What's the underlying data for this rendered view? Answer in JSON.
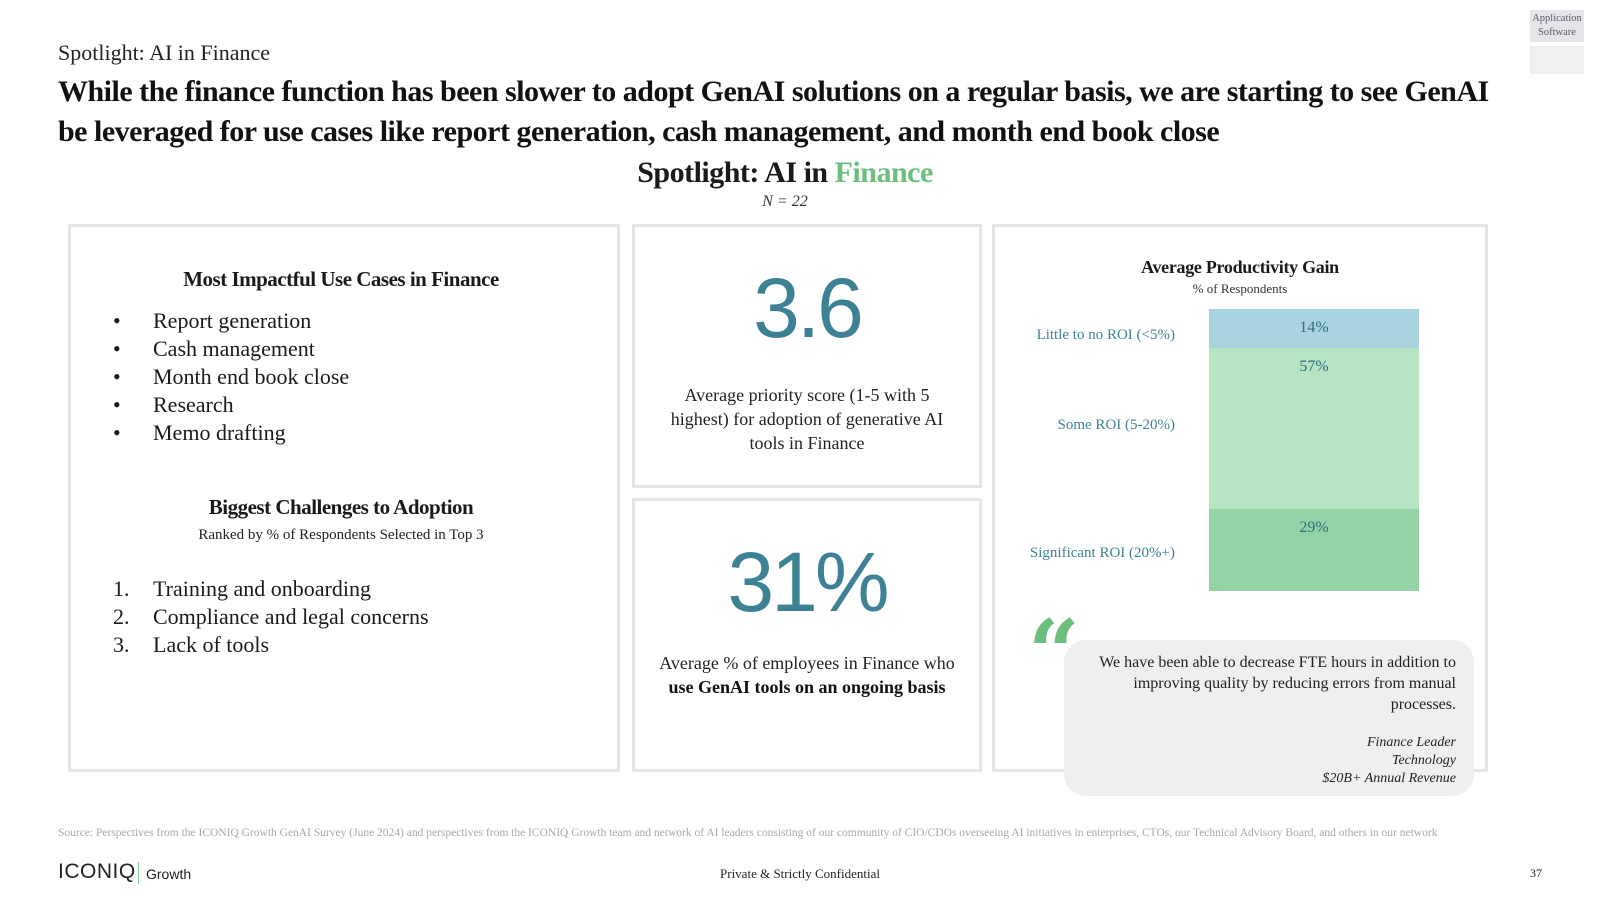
{
  "corner_tag": {
    "line1": "Application",
    "line2": "Software"
  },
  "eyebrow": "Spotlight: AI in Finance",
  "headline": "While the finance function has been slower to adopt GenAI solutions on a regular basis, we are starting to see GenAI be leveraged for use cases like report generation, cash management, and month end book close",
  "center_title": {
    "prefix": "Spotlight: AI in ",
    "accent": "Finance",
    "accent_color": "#6cbf7c"
  },
  "n_label": "N = 22",
  "use_cases": {
    "title": "Most Impactful Use Cases in Finance",
    "bullet": "•",
    "items": [
      "Report generation",
      "Cash management",
      "Month end book close",
      "Research",
      "Memo drafting"
    ]
  },
  "challenges": {
    "title": "Biggest Challenges to Adoption",
    "subtitle": "Ranked by % of Respondents Selected in Top 3",
    "items": [
      {
        "num": "1.",
        "label": "Training and onboarding"
      },
      {
        "num": "2.",
        "label": "Compliance and legal concerns"
      },
      {
        "num": "3.",
        "label": "Lack of tools"
      }
    ]
  },
  "stat1": {
    "value": "3.6",
    "desc": "Average priority score (1-5 with 5 highest) for adoption of generative AI tools in Finance"
  },
  "stat2": {
    "value": "31%",
    "desc_plain": "Average % of employees in Finance who ",
    "desc_bold": "use GenAI tools on an ongoing basis"
  },
  "chart_data": {
    "type": "bar",
    "stacked": true,
    "title": "Average Productivity Gain",
    "subtitle": "% of Respondents",
    "categories": [
      "Little to no ROI (<5%)",
      "Some ROI (5-20%)",
      "Significant ROI (20%+)"
    ],
    "values": [
      14,
      57,
      29
    ],
    "value_labels": [
      "14%",
      "57%",
      "29%"
    ],
    "colors": [
      "#a9d3df",
      "#b7e4c3",
      "#93d3a6"
    ],
    "label_color": "#3d8294"
  },
  "quote": {
    "mark": "“",
    "text": "We have been able to decrease FTE hours in addition to improving quality by reducing errors from manual processes.",
    "attr_role": "Finance Leader",
    "attr_sector": "Technology",
    "attr_revenue": "$20B+ Annual Revenue"
  },
  "footer": {
    "source": "Source: Perspectives from the ICONIQ Growth GenAI Survey (June 2024) and perspectives from the ICONIQ Growth team and network of AI leaders consisting of our community of CIO/CDOs overseeing AI initiatives in enterprises, CTOs, our Technical Advisory Board, and others in our network",
    "logo": "ICONIQ",
    "logo_sub": "Growth",
    "confidential": "Private & Strictly Confidential",
    "page": "37"
  }
}
